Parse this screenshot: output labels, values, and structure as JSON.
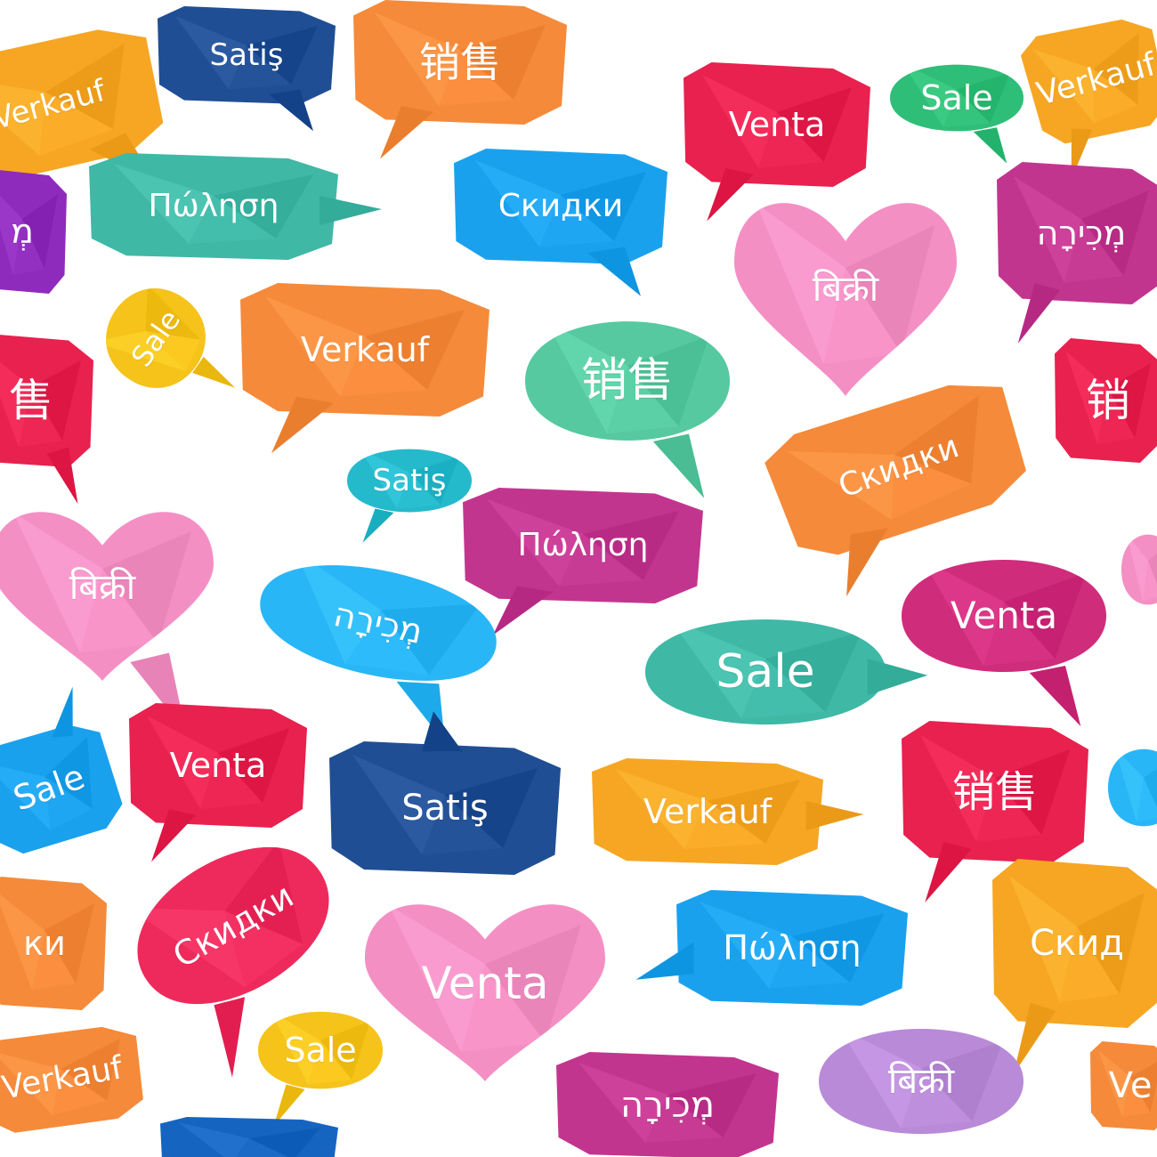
{
  "image": {
    "background": "#ffffff",
    "palette": {
      "navy": "#1f4e94",
      "orange": "#f58a3a",
      "yellow_orange": "#f6a623",
      "red": "#e8214f",
      "teal": "#3fb8a6",
      "green": "#2fbe77",
      "blue": "#1aa1ee",
      "sky": "#29b6f6",
      "pink": "#f48fc4",
      "magenta": "#c2358f",
      "purple": "#8e2bbd",
      "yellow": "#f5c31a",
      "mint": "#56c9a0",
      "cyan": "#25b9cc",
      "lavender": "#b98ad8",
      "dark_blue": "#1565c0",
      "rose": "#ff5f8a"
    },
    "bubbles": [
      {
        "name": "bubble-satis-top",
        "text": "Satiş",
        "color": "#1f4e94",
        "shape": "rect",
        "tail": "bottom-right",
        "rot": 0,
        "font": 34
      },
      {
        "name": "bubble-chinese-top",
        "text": "销售",
        "color": "#f58a3a",
        "shape": "rect",
        "tail": "bottom-left",
        "rot": 0,
        "font": 46
      },
      {
        "name": "bubble-verkauf-topleft",
        "text": "Verkauf",
        "color": "#f6a623",
        "shape": "rect",
        "tail": "bottom-right",
        "rot": -15,
        "font": 34
      },
      {
        "name": "bubble-venta-top",
        "text": "Venta",
        "color": "#e8214f",
        "shape": "rect",
        "tail": "bottom-left",
        "rot": 0,
        "font": 38
      },
      {
        "name": "bubble-sale-top",
        "text": "Sale",
        "color": "#2fbe77",
        "shape": "round",
        "tail": "bottom-right",
        "rot": 0,
        "font": 38
      },
      {
        "name": "bubble-verkauf-topright",
        "text": "Verkauf",
        "color": "#f6a623",
        "shape": "rect",
        "tail": "bottom-left",
        "rot": -15,
        "font": 36
      },
      {
        "name": "bubble-greek-top",
        "text": "Πώληση",
        "color": "#3fb8a6",
        "shape": "rect",
        "tail": "right",
        "rot": 0,
        "font": 36
      },
      {
        "name": "bubble-russian-top",
        "text": "Скидки",
        "color": "#1aa1ee",
        "shape": "rect",
        "tail": "bottom-right",
        "rot": 0,
        "font": 36
      },
      {
        "name": "bubble-hindi-top",
        "text": "बिक्री",
        "color": "#f48fc4",
        "shape": "heart",
        "tail": "none",
        "rot": 0,
        "font": 40
      },
      {
        "name": "bubble-hebrew-topright",
        "text": "מְכִירָה",
        "color": "#c2358f",
        "shape": "rect",
        "tail": "bottom-left",
        "rot": 0,
        "font": 38
      },
      {
        "name": "bubble-hebrew-left",
        "text": "מְ",
        "color": "#8e2bbd",
        "shape": "rect",
        "tail": "none",
        "rot": 0,
        "font": 38
      },
      {
        "name": "bubble-sale-yellow",
        "text": "Sale",
        "color": "#f5c31a",
        "shape": "round",
        "tail": "bottom",
        "rot": -55,
        "font": 32
      },
      {
        "name": "bubble-verkauf-middle",
        "text": "Verkauf",
        "color": "#f58a3a",
        "shape": "rect",
        "tail": "bottom-left",
        "rot": 0,
        "font": 38
      },
      {
        "name": "bubble-chinese-middle",
        "text": "销售",
        "color": "#56c9a0",
        "shape": "round",
        "tail": "bottom-right",
        "rot": 0,
        "font": 52
      },
      {
        "name": "bubble-chinese-left",
        "text": "售",
        "color": "#e8214f",
        "shape": "rect",
        "tail": "bottom-right",
        "rot": 0,
        "font": 50
      },
      {
        "name": "bubble-chinese-right",
        "text": "销",
        "color": "#e8214f",
        "shape": "rect",
        "tail": "none",
        "rot": 0,
        "font": 50
      },
      {
        "name": "bubble-satis-small",
        "text": "Satiş",
        "color": "#25b9cc",
        "shape": "round",
        "tail": "bottom-left",
        "rot": 0,
        "font": 34
      },
      {
        "name": "bubble-russian-orange",
        "text": "Скидки",
        "color": "#f58a3a",
        "shape": "rect",
        "tail": "bottom-left",
        "rot": -20,
        "font": 36
      },
      {
        "name": "bubble-hindi-left",
        "text": "बिक्री",
        "color": "#f48fc4",
        "shape": "heart",
        "tail": "bottom-right",
        "rot": 0,
        "font": 40
      },
      {
        "name": "bubble-greek-middle",
        "text": "Πώληση",
        "color": "#c2358f",
        "shape": "rect",
        "tail": "bottom-left",
        "rot": 0,
        "font": 36
      },
      {
        "name": "bubble-hebrew-middle",
        "text": "מְכִירָה",
        "color": "#29b6f6",
        "shape": "round",
        "tail": "bottom-right",
        "rot": 12,
        "font": 38
      },
      {
        "name": "bubble-venta-right",
        "text": "Venta",
        "color": "#d02c7c",
        "shape": "round",
        "tail": "bottom-right",
        "rot": 0,
        "font": 42
      },
      {
        "name": "bubble-sale-mint",
        "text": "Sale",
        "color": "#3fb8a6",
        "shape": "round",
        "tail": "right",
        "rot": 0,
        "font": 52
      },
      {
        "name": "bubble-sale-blue-left",
        "text": "Sale",
        "color": "#1aa1ee",
        "shape": "rect",
        "tail": "top-right",
        "rot": -20,
        "font": 38
      },
      {
        "name": "bubble-venta-red",
        "text": "Venta",
        "color": "#e8214f",
        "shape": "rect",
        "tail": "bottom-left",
        "rot": 0,
        "font": 38
      },
      {
        "name": "bubble-satis-navy",
        "text": "Satiş",
        "color": "#1f4e94",
        "shape": "rect",
        "tail": "top",
        "rot": 0,
        "font": 40
      },
      {
        "name": "bubble-verkauf-lower",
        "text": "Verkauf",
        "color": "#f6a623",
        "shape": "rect",
        "tail": "right",
        "rot": 0,
        "font": 38
      },
      {
        "name": "bubble-chinese-lower",
        "text": "销售",
        "color": "#e8214f",
        "shape": "rect",
        "tail": "bottom-left",
        "rot": 0,
        "font": 48
      },
      {
        "name": "bubble-sky-edge",
        "text": "",
        "color": "#29b6f6",
        "shape": "round",
        "tail": "none",
        "rot": 0,
        "font": 36
      },
      {
        "name": "bubble-pink-edge",
        "text": "",
        "color": "#f48fc4",
        "shape": "round",
        "tail": "none",
        "rot": 0,
        "font": 36
      },
      {
        "name": "bubble-russian-left",
        "text": "ки",
        "color": "#f58a3a",
        "shape": "rect",
        "tail": "none",
        "rot": 0,
        "font": 38
      },
      {
        "name": "bubble-russian-red",
        "text": "Скидки",
        "color": "#ee2a5c",
        "shape": "round",
        "tail": "bottom-left",
        "rot": -30,
        "font": 38
      },
      {
        "name": "bubble-venta-pink",
        "text": "Venta",
        "color": "#f48fc4",
        "shape": "heart",
        "tail": "none",
        "rot": 0,
        "font": 50
      },
      {
        "name": "bubble-greek-lower",
        "text": "Πώληση",
        "color": "#1aa1ee",
        "shape": "rect",
        "tail": "left",
        "rot": 0,
        "font": 38
      },
      {
        "name": "bubble-russian-right",
        "text": "Скид",
        "color": "#f6a623",
        "shape": "rect",
        "tail": "bottom-left",
        "rot": 0,
        "font": 40
      },
      {
        "name": "bubble-verkauf-bottom",
        "text": "Verkauf",
        "color": "#f58a3a",
        "shape": "rect",
        "tail": "none",
        "rot": -10,
        "font": 36
      },
      {
        "name": "bubble-sale-yellow-bottom",
        "text": "Sale",
        "color": "#f5c31a",
        "shape": "round",
        "tail": "bottom-left",
        "rot": 0,
        "font": 38
      },
      {
        "name": "bubble-hebrew-bottom",
        "text": "מְכִירָה",
        "color": "#c2358f",
        "shape": "rect",
        "tail": "none",
        "rot": 0,
        "font": 40
      },
      {
        "name": "bubble-hindi-bottom",
        "text": "बिक्री",
        "color": "#b98ad8",
        "shape": "round",
        "tail": "none",
        "rot": 0,
        "font": 40
      },
      {
        "name": "bubble-ve-bottomright",
        "text": "Ve",
        "color": "#f58a3a",
        "shape": "rect",
        "tail": "none",
        "rot": 0,
        "font": 40
      },
      {
        "name": "bubble-blue-bottom",
        "text": "",
        "color": "#1565c0",
        "shape": "rect",
        "tail": "none",
        "rot": 0,
        "font": 36
      }
    ]
  }
}
